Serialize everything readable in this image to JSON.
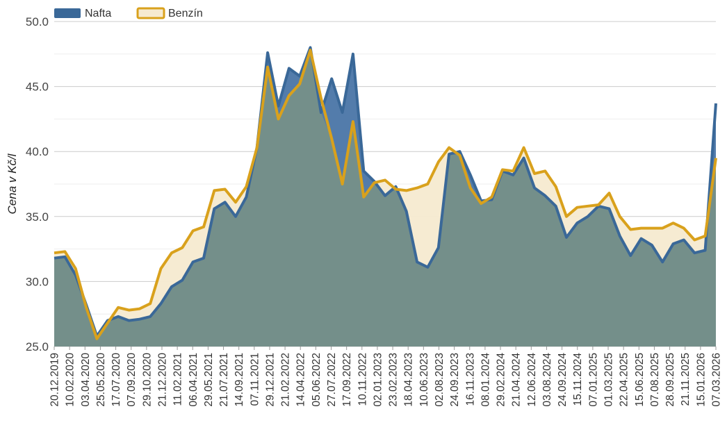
{
  "chart_data": {
    "type": "area",
    "ylabel": "Cena v Kč/l",
    "ylim": [
      25,
      50
    ],
    "yticks": [
      "25.0",
      "30.0",
      "35.0",
      "40.0",
      "45.0",
      "50.0"
    ],
    "grid": true,
    "legend_position": "top-left",
    "x_tick_labels": [
      "20.12.2019",
      "10.02.2020",
      "03.04.2020",
      "25.05.2020",
      "17.07.2020",
      "07.09.2020",
      "29.10.2020",
      "21.12.2020",
      "11.02.2021",
      "06.04.2021",
      "29.05.2021",
      "21.07.2021",
      "14.09.2021",
      "07.11.2021",
      "29.12.2021",
      "21.02.2022",
      "14.04.2022",
      "05.06.2022",
      "27.07.2022",
      "17.09.2022",
      "10.11.2022",
      "02.01.2023",
      "23.02.2023",
      "18.04.2023",
      "10.06.2023",
      "02.08.2023",
      "24.09.2023",
      "16.11.2023",
      "08.01.2024",
      "29.02.2024",
      "21.04.2024",
      "12.06.2024",
      "03.08.2024",
      "24.09.2024",
      "15.11.2024",
      "07.01.2025",
      "01.03.2025",
      "22.04.2025",
      "15.06.2025",
      "07.08.2025",
      "28.09.2025",
      "21.11.2025",
      "15.01.2026",
      "07.03.2026"
    ],
    "series": [
      {
        "name": "Nafta",
        "color": "#3a6898",
        "values": [
          31.8,
          31.9,
          30.5,
          28.2,
          25.8,
          27.0,
          27.3,
          27.0,
          27.1,
          27.3,
          28.3,
          29.6,
          30.1,
          31.5,
          31.8,
          35.6,
          36.1,
          35.0,
          36.5,
          40.3,
          47.6,
          43.5,
          46.4,
          45.8,
          48.0,
          43.0,
          45.6,
          43.0,
          47.5,
          38.5,
          37.7,
          36.6,
          37.3,
          35.4,
          31.5,
          31.1,
          32.6,
          39.8,
          40.0,
          38.2,
          36.2,
          36.3,
          38.5,
          38.2,
          39.5,
          37.2,
          36.6,
          35.8,
          33.4,
          34.5,
          35.0,
          35.8,
          35.6,
          33.5,
          32.0,
          33.3,
          32.8,
          31.5,
          32.9,
          33.2,
          32.2,
          32.4,
          43.7
        ]
      },
      {
        "name": "Benzín",
        "color": "#d9a11c",
        "values": [
          32.2,
          32.3,
          31.0,
          28.0,
          25.6,
          26.8,
          28.0,
          27.8,
          27.9,
          28.3,
          31.0,
          32.2,
          32.6,
          33.9,
          34.2,
          37.0,
          37.1,
          36.1,
          37.3,
          40.3,
          46.5,
          42.5,
          44.3,
          45.2,
          47.8,
          44.1,
          41.0,
          37.5,
          42.3,
          36.5,
          37.6,
          37.8,
          37.1,
          37.0,
          37.2,
          37.5,
          39.2,
          40.3,
          39.7,
          37.2,
          36.0,
          36.5,
          38.6,
          38.5,
          40.3,
          38.3,
          38.5,
          37.3,
          35.0,
          35.7,
          35.8,
          35.9,
          36.8,
          35.0,
          34.0,
          34.1,
          34.1,
          34.1,
          34.5,
          34.1,
          33.2,
          33.5,
          39.5
        ]
      }
    ]
  }
}
